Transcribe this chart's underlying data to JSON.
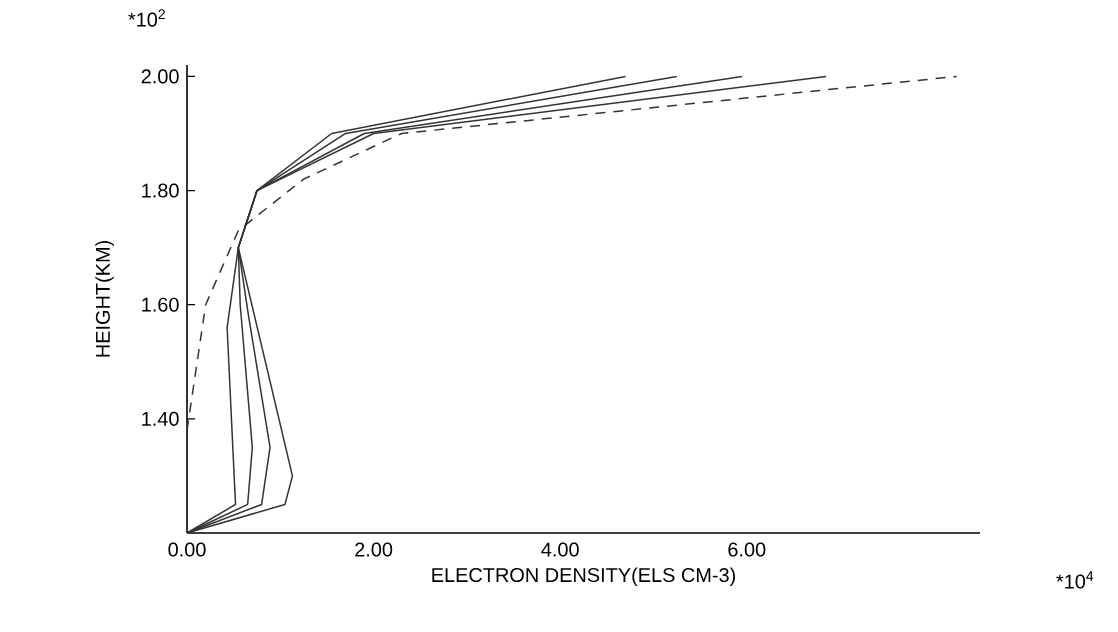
{
  "chart_data": {
    "type": "line",
    "xlabel": "ELECTRON DENSITY(ELS CM-3)",
    "ylabel": "HEIGHT(KM)",
    "annotations": [
      "*10$^{2}$",
      "*10$^{4}$"
    ],
    "xlim": [
      0,
      8.5
    ],
    "ylim": [
      1.2,
      2.02
    ],
    "xticks": [
      {
        "value": 0,
        "label": "0.00"
      },
      {
        "value": 2,
        "label": "2.00"
      },
      {
        "value": 4,
        "label": "4.00"
      },
      {
        "value": 6,
        "label": "6.00"
      }
    ],
    "yticks": [
      {
        "value": 1.4,
        "label": "1.40"
      },
      {
        "value": 1.6,
        "label": "1.60"
      },
      {
        "value": 1.8,
        "label": "1.80"
      },
      {
        "value": 2.0,
        "label": "2.00"
      }
    ],
    "marker": "none",
    "series": [
      {
        "color": "#333333",
        "line_style": "solid",
        "x": [
          0,
          0.52,
          0.43,
          0.55,
          0.75,
          1.55,
          4.7
        ],
        "values": [
          1.2,
          1.25,
          1.56,
          1.7,
          1.8,
          1.9,
          2.0
        ]
      },
      {
        "color": "#333333",
        "line_style": "solid",
        "x": [
          0,
          0.65,
          0.7,
          0.57,
          0.55,
          0.75,
          1.7,
          5.25
        ],
        "values": [
          1.2,
          1.25,
          1.35,
          1.6,
          1.7,
          1.8,
          1.9,
          2.0
        ]
      },
      {
        "color": "#333333",
        "line_style": "solid",
        "x": [
          0,
          0.8,
          0.89,
          0.66,
          0.55,
          0.75,
          1.9,
          5.95
        ],
        "values": [
          1.2,
          1.25,
          1.35,
          1.58,
          1.7,
          1.8,
          1.9,
          2.0
        ]
      },
      {
        "color": "#333333",
        "line_style": "solid",
        "x": [
          0,
          1.05,
          1.13,
          0.55,
          0.75,
          2.0,
          6.85
        ],
        "values": [
          1.2,
          1.25,
          1.3,
          1.7,
          1.8,
          1.9,
          2.0
        ]
      },
      {
        "color": "#333333",
        "line_style": "dashed",
        "x": [
          0,
          0.2,
          0.55,
          1.25,
          2.3,
          8.25
        ],
        "values": [
          1.38,
          1.6,
          1.73,
          1.82,
          1.9,
          2.0
        ]
      }
    ]
  }
}
